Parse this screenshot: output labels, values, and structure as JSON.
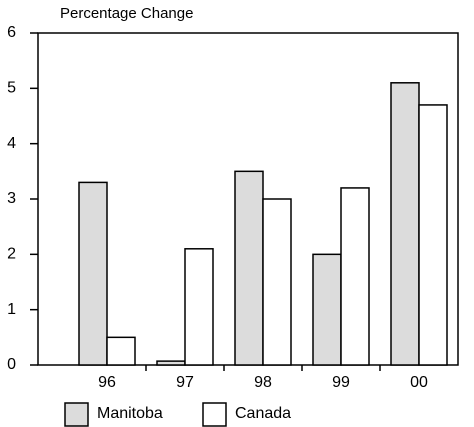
{
  "chart_data": {
    "type": "bar",
    "title": "Percentage Change",
    "categories": [
      "96",
      "97",
      "98",
      "99",
      "00"
    ],
    "series": [
      {
        "name": "Manitoba",
        "color": "#dcdcdc",
        "values": [
          3.3,
          0.07,
          3.5,
          2.0,
          5.1
        ]
      },
      {
        "name": "Canada",
        "color": "#ffffff",
        "values": [
          0.5,
          2.1,
          3.0,
          3.2,
          4.7
        ]
      }
    ],
    "ylim": [
      0,
      6
    ],
    "yticks": [
      0,
      1,
      2,
      3,
      4,
      5,
      6
    ],
    "grid": false
  }
}
